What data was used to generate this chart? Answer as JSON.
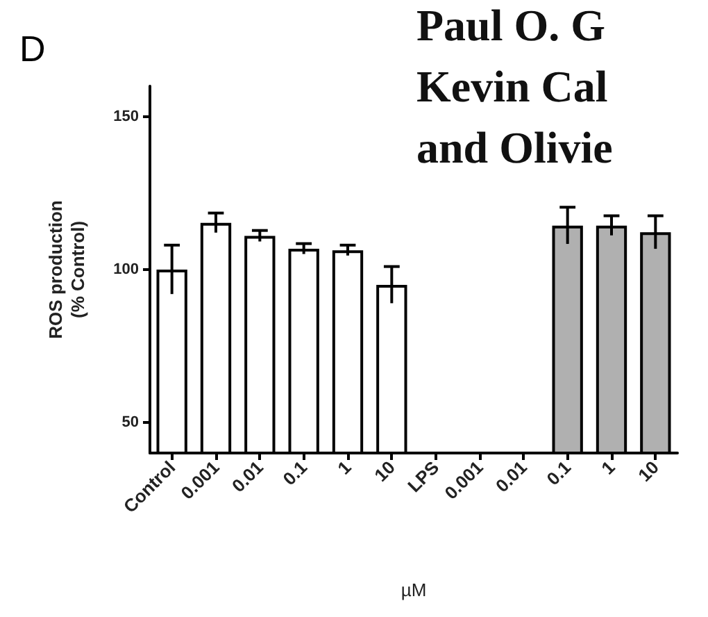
{
  "chart_data": {
    "type": "bar",
    "categories": [
      "Control",
      "0.001",
      "0.01",
      "0.1",
      "1",
      "10",
      "LPS",
      "0.001",
      "0.01",
      "0.1",
      "1",
      "10"
    ],
    "values": [
      100,
      115.3,
      111,
      106.8,
      106.3,
      95,
      null,
      null,
      null,
      114.4,
      114.4,
      112.2
    ],
    "errors": [
      8,
      3.2,
      1.8,
      1.7,
      1.7,
      6,
      null,
      null,
      null,
      6,
      3.2,
      5.4
    ],
    "colors": [
      "#ffffff",
      "#ffffff",
      "#ffffff",
      "#ffffff",
      "#ffffff",
      "#ffffff",
      "#000000",
      "#b0b0b0",
      "#b0b0b0",
      "#b0b0b0",
      "#b0b0b0",
      "#b0b0b0"
    ],
    "ylim": [
      40,
      160
    ],
    "yticks": [
      50,
      100,
      150
    ],
    "ylabel": "ROS production\n(% Control)",
    "xlabel": "µM",
    "grid": false,
    "annotations": [
      "D",
      "Paul O. G",
      "Kevin Cal",
      "and Olivie"
    ]
  }
}
